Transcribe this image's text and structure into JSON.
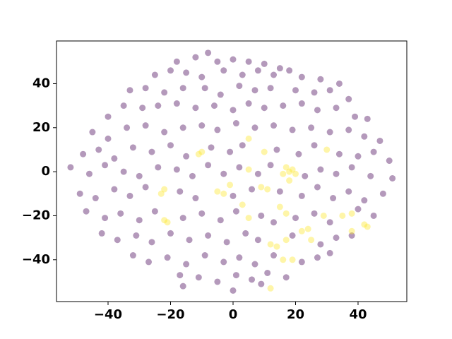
{
  "chart_data": {
    "type": "scatter",
    "xlim": [
      -56.5,
      55.6
    ],
    "ylim": [
      -59,
      59.4
    ],
    "xticks": [
      {
        "value": -40,
        "label": "−40"
      },
      {
        "value": -20,
        "label": "−20"
      },
      0,
      20,
      40
    ],
    "yticks": [
      {
        "value": -40,
        "label": "−40"
      },
      {
        "value": -20,
        "label": "−20"
      },
      0,
      20,
      40
    ],
    "series": [
      {
        "color": "#440154",
        "x": [
          -12,
          -5,
          0,
          5,
          10,
          -18,
          15,
          -8,
          -25,
          -20,
          -15,
          -10,
          -3,
          3,
          8,
          13,
          18,
          22,
          28,
          34,
          -33,
          -28,
          -22,
          -16,
          -9,
          -4,
          2,
          7,
          12,
          20,
          26,
          31,
          37,
          -40,
          -35,
          -29,
          -24,
          -18,
          -12,
          -6,
          0,
          5,
          10,
          16,
          22,
          27,
          33,
          39,
          43,
          -45,
          -40,
          -34,
          -28,
          -22,
          -16,
          -10,
          -5,
          1,
          7,
          13,
          19,
          25,
          31,
          37,
          42,
          47,
          -48,
          -43,
          -38,
          -32,
          -26,
          -20,
          -15,
          -7,
          -1,
          3,
          14,
          21,
          26,
          34,
          40,
          45,
          50,
          -52,
          -46,
          -41,
          -35,
          -30,
          -24,
          -18,
          -13,
          -8,
          -3,
          2,
          8,
          12,
          23,
          28,
          33,
          38,
          44,
          51,
          -49,
          -44,
          -38,
          -33,
          -28,
          -17,
          -12,
          0,
          6,
          15,
          22,
          27,
          32,
          37,
          42,
          48,
          -47,
          -41,
          -36,
          -30,
          -25,
          -16,
          -10,
          -4,
          1,
          9,
          13,
          20,
          26,
          31,
          40,
          45,
          -42,
          -37,
          -31,
          -26,
          -20,
          -14,
          -8,
          -2,
          4,
          8,
          19,
          28,
          33,
          38,
          -32,
          -27,
          -21,
          -15,
          -9,
          -3,
          2,
          7,
          13,
          22,
          27,
          31,
          -17,
          -11,
          -5,
          1,
          6,
          11,
          17,
          -16,
          0,
          9
        ],
        "values": [
          52,
          50,
          51,
          50,
          49,
          50,
          47,
          54,
          44,
          46,
          45,
          43,
          46,
          44,
          46,
          44,
          46,
          43,
          42,
          40,
          37,
          38,
          36,
          38,
          38,
          35,
          39,
          37,
          38,
          37,
          36,
          37,
          33,
          25,
          30,
          29,
          30,
          31,
          29,
          30,
          28,
          31,
          29,
          30,
          31,
          28,
          29,
          25,
          24,
          18,
          15,
          20,
          21,
          18,
          20,
          21,
          19,
          22,
          20,
          21,
          19,
          20,
          18,
          19,
          16,
          14,
          8,
          10,
          6,
          11,
          9,
          12,
          7,
          11,
          9,
          12,
          10,
          8,
          12,
          8,
          7,
          9,
          5,
          2,
          -1,
          3,
          0,
          -2,
          2,
          1,
          -2,
          3,
          -1,
          2,
          -1,
          3,
          -2,
          1,
          -1,
          2,
          -2,
          -3,
          -10,
          -12,
          -8,
          -11,
          -7,
          -9,
          -12,
          -11,
          -8,
          -9,
          -11,
          -7,
          -12,
          -9,
          -13,
          -10,
          -18,
          -21,
          -19,
          -22,
          -18,
          -21,
          -19,
          -22,
          -18,
          -20,
          -23,
          -21,
          -19,
          -23,
          -17,
          -20,
          -28,
          -31,
          -29,
          -32,
          -28,
          -31,
          -29,
          -32,
          -28,
          -31,
          -29,
          -33,
          -30,
          -29,
          -38,
          -41,
          -39,
          -42,
          -38,
          -41,
          -39,
          -42,
          -38,
          -41,
          -39,
          -37,
          -47,
          -48,
          -50,
          -47,
          -49,
          -46,
          -48,
          -52,
          -54,
          -51
        ]
      },
      {
        "color": "#fde725",
        "x": [
          -23,
          -22,
          -22,
          -21,
          -11,
          -10,
          -5,
          -3,
          3,
          5,
          5,
          5,
          9,
          11,
          10,
          15,
          17,
          18,
          17,
          19,
          20,
          16,
          18,
          12,
          14,
          17,
          16,
          19,
          12,
          22,
          24,
          25,
          30,
          29,
          35,
          38,
          38,
          42,
          43,
          -1
        ],
        "values": [
          -10,
          -8,
          -22,
          -23,
          8,
          9,
          -9,
          -10,
          -15,
          -21,
          15,
          1,
          -7,
          -8,
          9,
          -16,
          -19,
          0,
          2,
          1,
          -1,
          -1,
          -4,
          -33,
          -34,
          -31,
          -40,
          -40,
          -53,
          -27,
          -26,
          -31,
          10,
          -20,
          -20,
          -19,
          -27,
          -24,
          -25,
          -6
        ]
      }
    ]
  }
}
